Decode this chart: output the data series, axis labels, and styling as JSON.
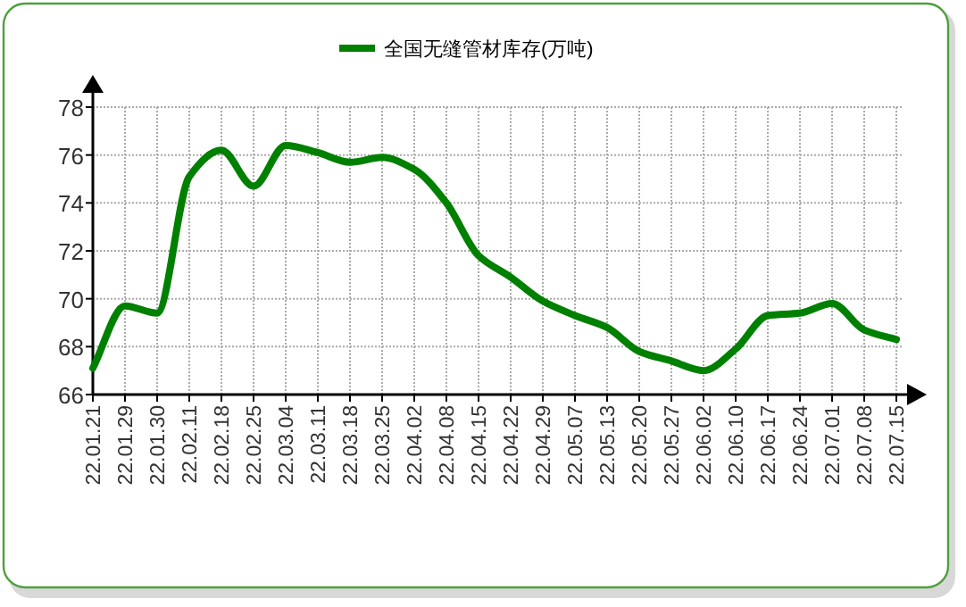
{
  "chart_data": {
    "type": "line",
    "legend": "top",
    "grid": true,
    "marker": "none",
    "line_style": "solid",
    "categories": [
      "22.01.21",
      "22.01.29",
      "22.01.30",
      "22.02.11",
      "22.02.18",
      "22.02.25",
      "22.03.04",
      "22.03.11",
      "22.03.18",
      "22.03.25",
      "22.04.02",
      "22.04.08",
      "22.04.15",
      "22.04.22",
      "22.04.29",
      "22.05.07",
      "22.05.13",
      "22.05.20",
      "22.05.27",
      "22.06.02",
      "22.06.10",
      "22.06.17",
      "22.06.24",
      "22.07.01",
      "22.07.08",
      "22.07.15"
    ],
    "ylim": [
      66,
      78
    ],
    "yticks": [
      66,
      68,
      70,
      72,
      74,
      76,
      78
    ],
    "series": [
      {
        "name": "全国无缝管材库存(万吨)",
        "color": "#008000",
        "values": [
          67.1,
          69.7,
          69.4,
          75.1,
          76.2,
          74.7,
          76.4,
          76.1,
          75.7,
          75.9,
          75.4,
          74.0,
          71.8,
          70.9,
          69.9,
          69.3,
          68.8,
          67.8,
          67.4,
          67.0,
          67.9,
          69.3,
          69.4,
          69.8,
          68.7,
          68.3
        ]
      }
    ]
  }
}
